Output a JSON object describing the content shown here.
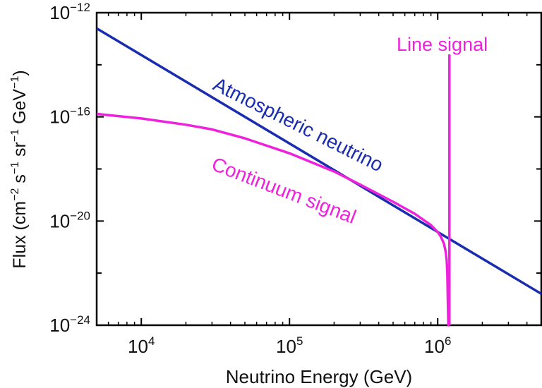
{
  "chart_data": {
    "type": "line",
    "xlabel": "Neutrino Energy (GeV)",
    "ylabel": {
      "parts": [
        {
          "t": "Flux (cm",
          "sup": false
        },
        {
          "t": "−2",
          "sup": true
        },
        {
          "t": " s",
          "sup": false
        },
        {
          "t": "−1",
          "sup": true
        },
        {
          "t": " sr",
          "sup": false
        },
        {
          "t": "−1",
          "sup": true
        },
        {
          "t": " GeV",
          "sup": false
        },
        {
          "t": "−1",
          "sup": true
        },
        {
          "t": ")",
          "sup": false
        }
      ]
    },
    "x_scale": "log",
    "y_scale": "log",
    "xlim": [
      5000,
      5000000
    ],
    "ylim": [
      1e-24,
      1e-12
    ],
    "x_ticks": [
      {
        "value": 10000,
        "base": "10",
        "exp": "4"
      },
      {
        "value": 100000,
        "base": "10",
        "exp": "5"
      },
      {
        "value": 1000000,
        "base": "10",
        "exp": "6"
      }
    ],
    "y_ticks": [
      {
        "value": 1e-12,
        "base": "10",
        "exp": "−12"
      },
      {
        "value": 1e-16,
        "base": "10",
        "exp": "−16"
      },
      {
        "value": 1e-20,
        "base": "10",
        "exp": "−20"
      },
      {
        "value": 1e-24,
        "base": "10",
        "exp": "−24"
      }
    ],
    "y_minor_ticks": [
      1e-14,
      1e-18,
      1e-22
    ],
    "grid": false,
    "series": [
      {
        "name": "Atmospheric neutrino",
        "color": "#1a2db0",
        "x": [
          5000,
          5000000
        ],
        "y": [
          2.5e-13,
          1.6e-23
        ]
      },
      {
        "name": "Continuum signal",
        "color": "#ee22dd",
        "x": [
          5000,
          10000,
          20000,
          30000,
          50000,
          100000,
          200000,
          300000,
          500000,
          700000,
          900000,
          1000000,
          1050000,
          1100000,
          1130000,
          1150000,
          1160000,
          1170000,
          1180000,
          1190000,
          1200000
        ],
        "y": [
          1.3e-16,
          8.7e-17,
          5e-17,
          3.3e-17,
          1.5e-17,
          4e-18,
          8e-19,
          2.5e-19,
          5.5e-20,
          1.9e-20,
          7e-21,
          3.8e-21,
          2.5e-21,
          1.4e-21,
          7e-22,
          3e-22,
          1e-22,
          1e-23,
          1e-24,
          1e-24,
          1e-24
        ]
      },
      {
        "name": "Line signal",
        "color": "#ee22dd",
        "x": [
          1200000,
          1200000
        ],
        "y": [
          1e-24,
          2.5e-14
        ]
      }
    ],
    "annotations": [
      {
        "series": "Atmospheric neutrino",
        "text": "Atmospheric neutrino",
        "color": "#1a2db0"
      },
      {
        "series": "Continuum signal",
        "text": "Continuum signal",
        "color": "#ee22dd"
      },
      {
        "series": "Line signal",
        "text": "Line signal",
        "color": "#ee22dd"
      }
    ]
  }
}
